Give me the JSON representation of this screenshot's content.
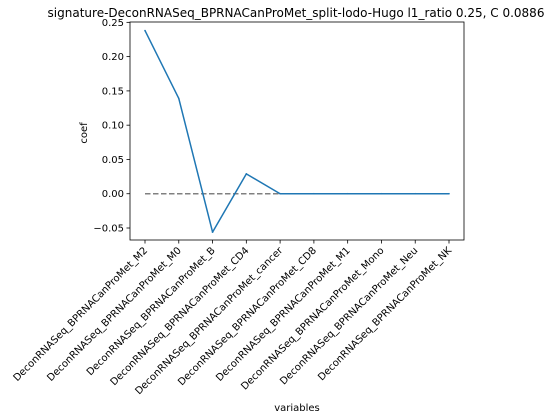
{
  "chart_data": {
    "type": "line",
    "title": "signature-DeconRNASeq_BPRNACanProMet_split-lodo-Hugo l1_ratio 0.25, C 0.0886",
    "xlabel": "variables",
    "ylabel": "coef",
    "categories": [
      "DeconRNASeq_BPRNACanProMet_M2",
      "DeconRNASeq_BPRNACanProMet_M0",
      "DeconRNASeq_BPRNACanProMet_B",
      "DeconRNASeq_BPRNACanProMet_CD4",
      "DeconRNASeq_BPRNACanProMet_cancer",
      "DeconRNASeq_BPRNACanProMet_CD8",
      "DeconRNASeq_BPRNACanProMet_M1",
      "DeconRNASeq_BPRNACanProMet_Mono",
      "DeconRNASeq_BPRNACanProMet_Neu",
      "DeconRNASeq_BPRNACanProMet_NK"
    ],
    "series": [
      {
        "values": [
          0.238,
          0.139,
          -0.056,
          0.029,
          0.0,
          0.0,
          0.0,
          0.0,
          0.0,
          0.0
        ],
        "color": "#1f77b4"
      }
    ],
    "reference_line": {
      "y": 0,
      "style": "dashed",
      "color": "#808080"
    },
    "ylim": [
      -0.0675,
      0.2505
    ],
    "yticks": [
      -0.05,
      0.0,
      0.05,
      0.1,
      0.15,
      0.2,
      0.25
    ],
    "ytick_labels": [
      "−0.05",
      "0.00",
      "0.05",
      "0.10",
      "0.15",
      "0.20",
      "0.25"
    ],
    "grid": false,
    "legend": "none"
  }
}
